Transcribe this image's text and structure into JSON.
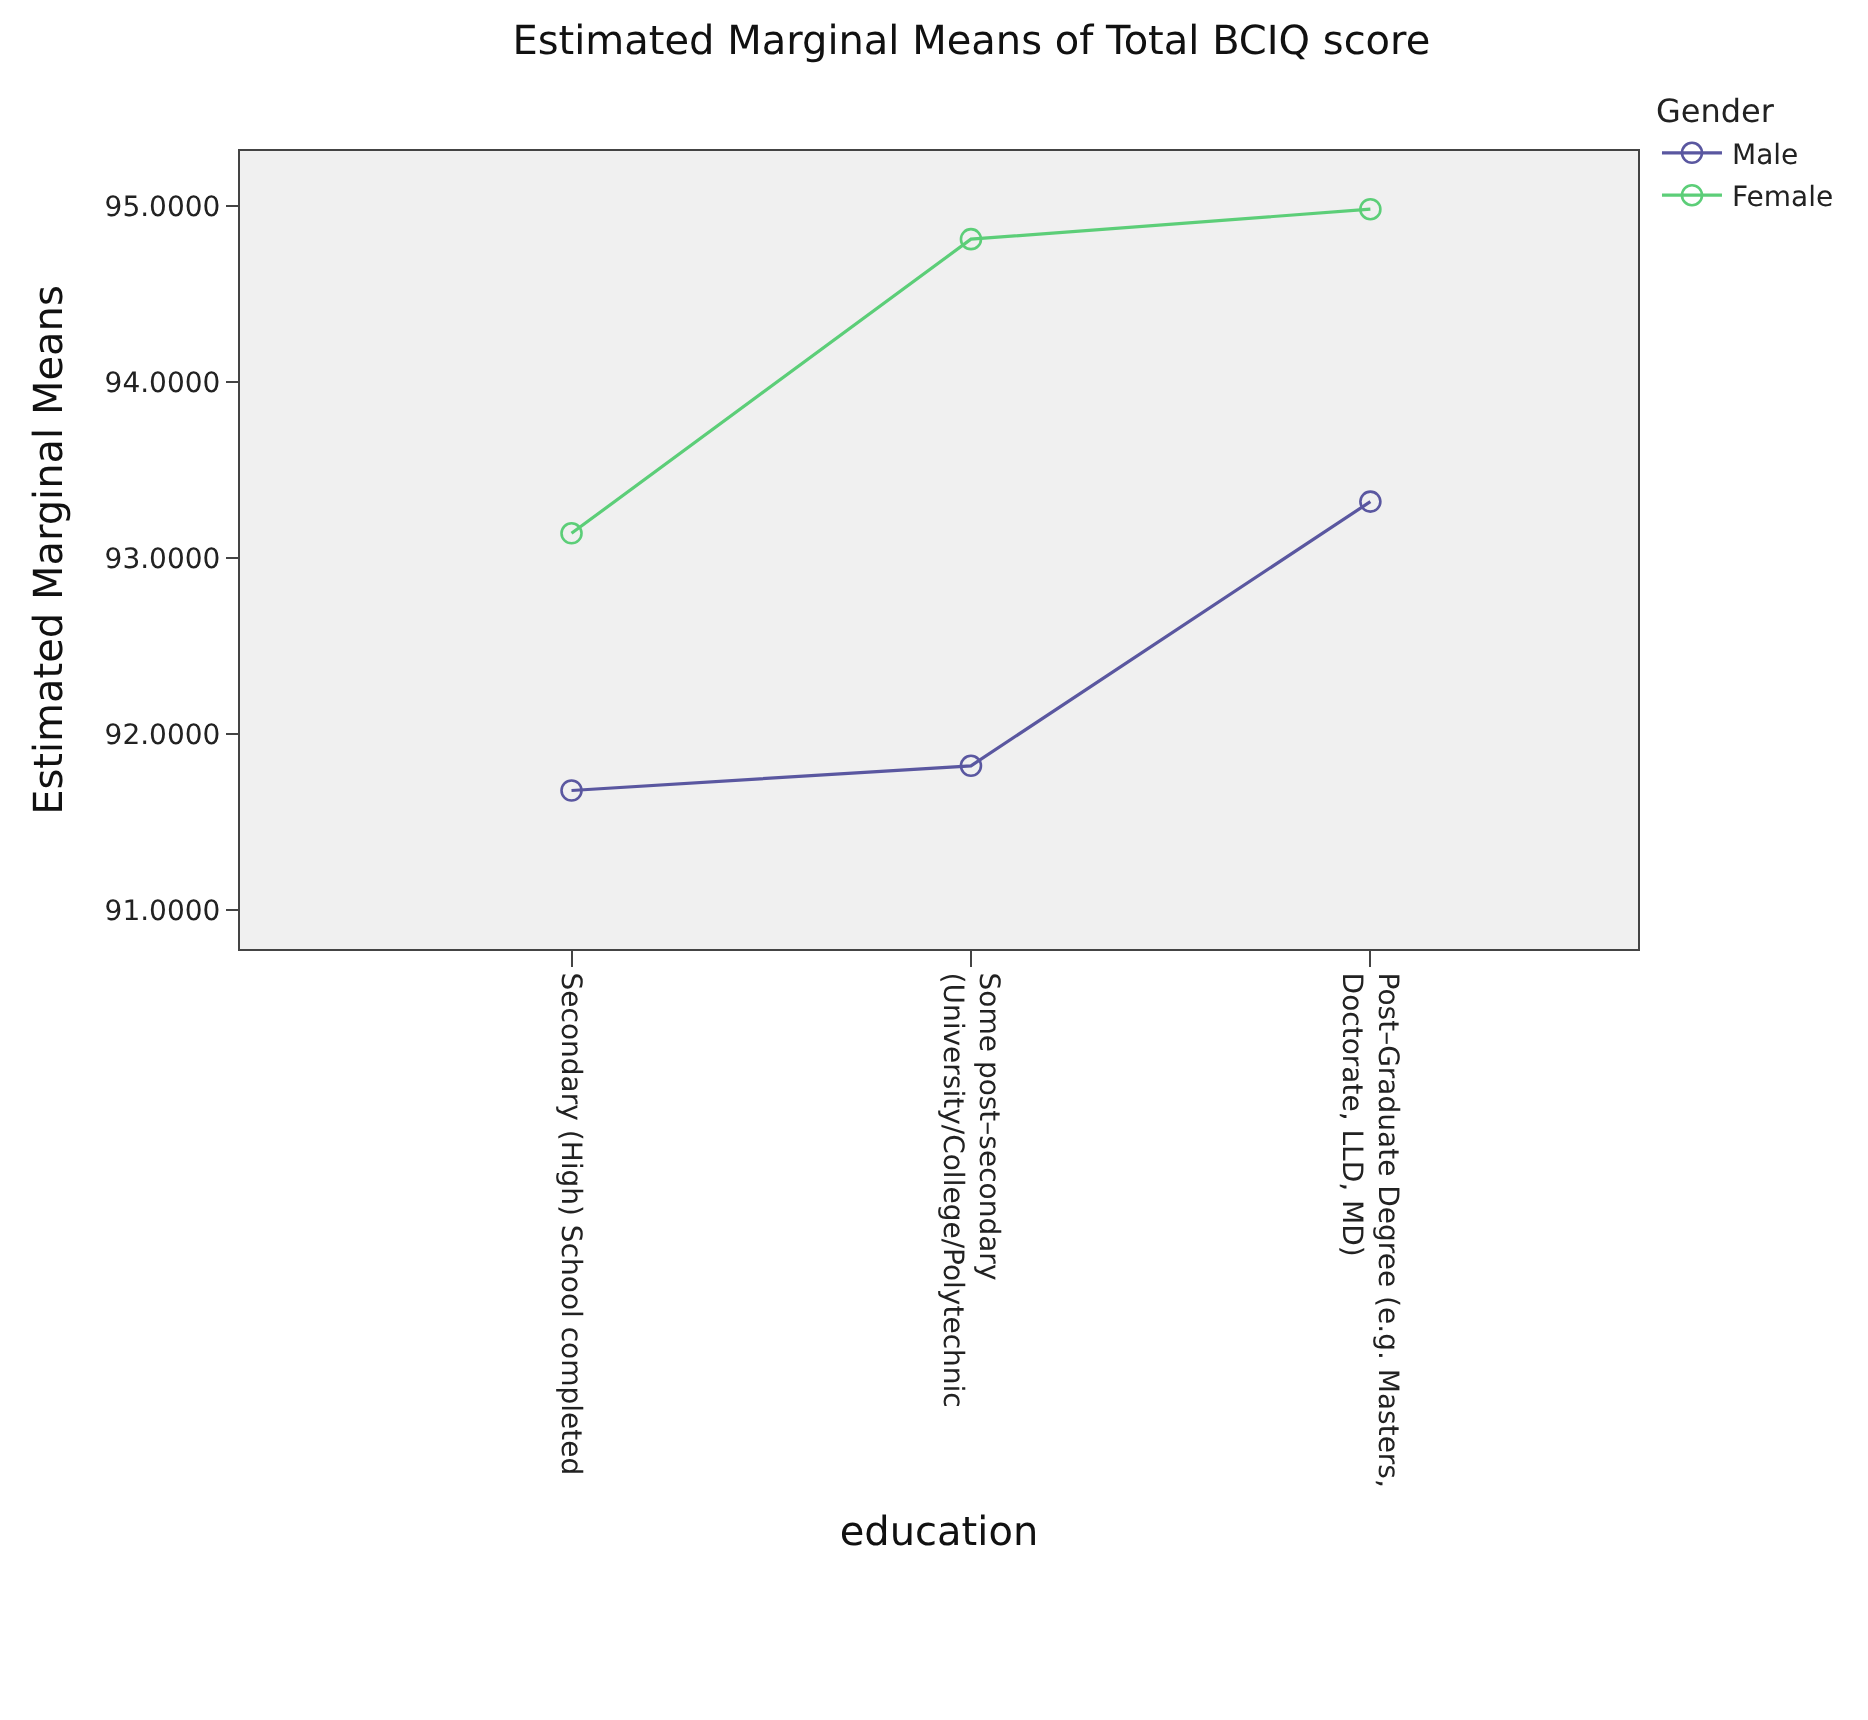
{
  "chart_data": {
    "type": "line",
    "title": "Estimated Marginal Means of Total BCIQ score",
    "xlabel": "education",
    "ylabel": "Estimated Marginal Means",
    "legend_title": "Gender",
    "categories": [
      "Secondary (High) School completed",
      "Some post–secondary\n(University/College/Polytechnic",
      "Post–Graduate Degree (e.g. Masters,\nDoctorate, LLD, MD)"
    ],
    "series": [
      {
        "name": "Male",
        "color": "#5a57a0",
        "values": [
          91.68,
          91.82,
          93.32
        ]
      },
      {
        "name": "Female",
        "color": "#5cce78",
        "values": [
          93.14,
          94.81,
          94.98
        ]
      }
    ],
    "ylim": [
      90.78,
      95.31
    ],
    "yticks": [
      {
        "value": 91,
        "label": "91.0000"
      },
      {
        "value": 92,
        "label": "92.0000"
      },
      {
        "value": 93,
        "label": "93.0000"
      },
      {
        "value": 94,
        "label": "94.0000"
      },
      {
        "value": 95,
        "label": "95.0000"
      }
    ],
    "grid": false,
    "legend": "top right",
    "marker": "circle",
    "line_style": "solid"
  }
}
